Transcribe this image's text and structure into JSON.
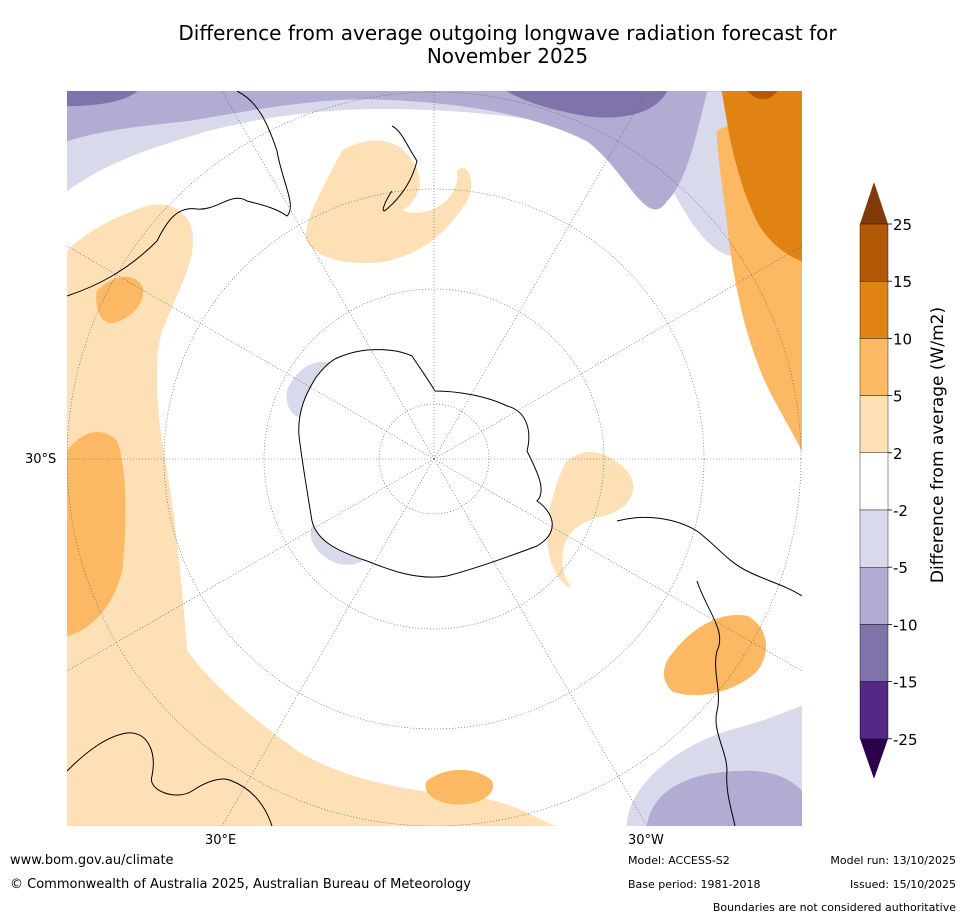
{
  "header": {
    "title_line1": "Difference from average outgoing longwave radiation forecast for",
    "title_line2": "November 2025"
  },
  "map": {
    "lat_label": "30°S",
    "lon_labels": {
      "east": "30°E",
      "west": "30°W"
    },
    "palette": {
      "pos_2_5": "#fde0b6",
      "pos_5_10": "#fdb863",
      "pos_10_15": "#e08214",
      "pos_15_25": "#b35806",
      "neg_2_5": "#d8daeb",
      "neg_5_10": "#b2abd2",
      "neg_10_15": "#8073ac",
      "land": "#000000",
      "grid": "#555555"
    }
  },
  "colorbar": {
    "label": "Difference from average (W/m2)",
    "ticks": [
      "25",
      "15",
      "10",
      "5",
      "2",
      "-2",
      "-5",
      "-10",
      "-15",
      "-25"
    ],
    "colors": [
      "#b35806",
      "#e08214",
      "#fdb863",
      "#fde0b6",
      "#ffffff",
      "#d8daeb",
      "#b2abd2",
      "#8073ac",
      "#542788"
    ],
    "over_color": "#7f3b08",
    "under_color": "#2d004b"
  },
  "footer": {
    "url": "www.bom.gov.au/climate",
    "copyright": "© Commonwealth of Australia 2025, Australian Bureau of Meteorology",
    "model": "Model: ACCESS-S2",
    "base_period": "Base period: 1981-2018",
    "model_run": "Model run: 13/10/2025",
    "issued": "Issued: 15/10/2025",
    "disclaimer": "Boundaries are not considered authoritative"
  }
}
